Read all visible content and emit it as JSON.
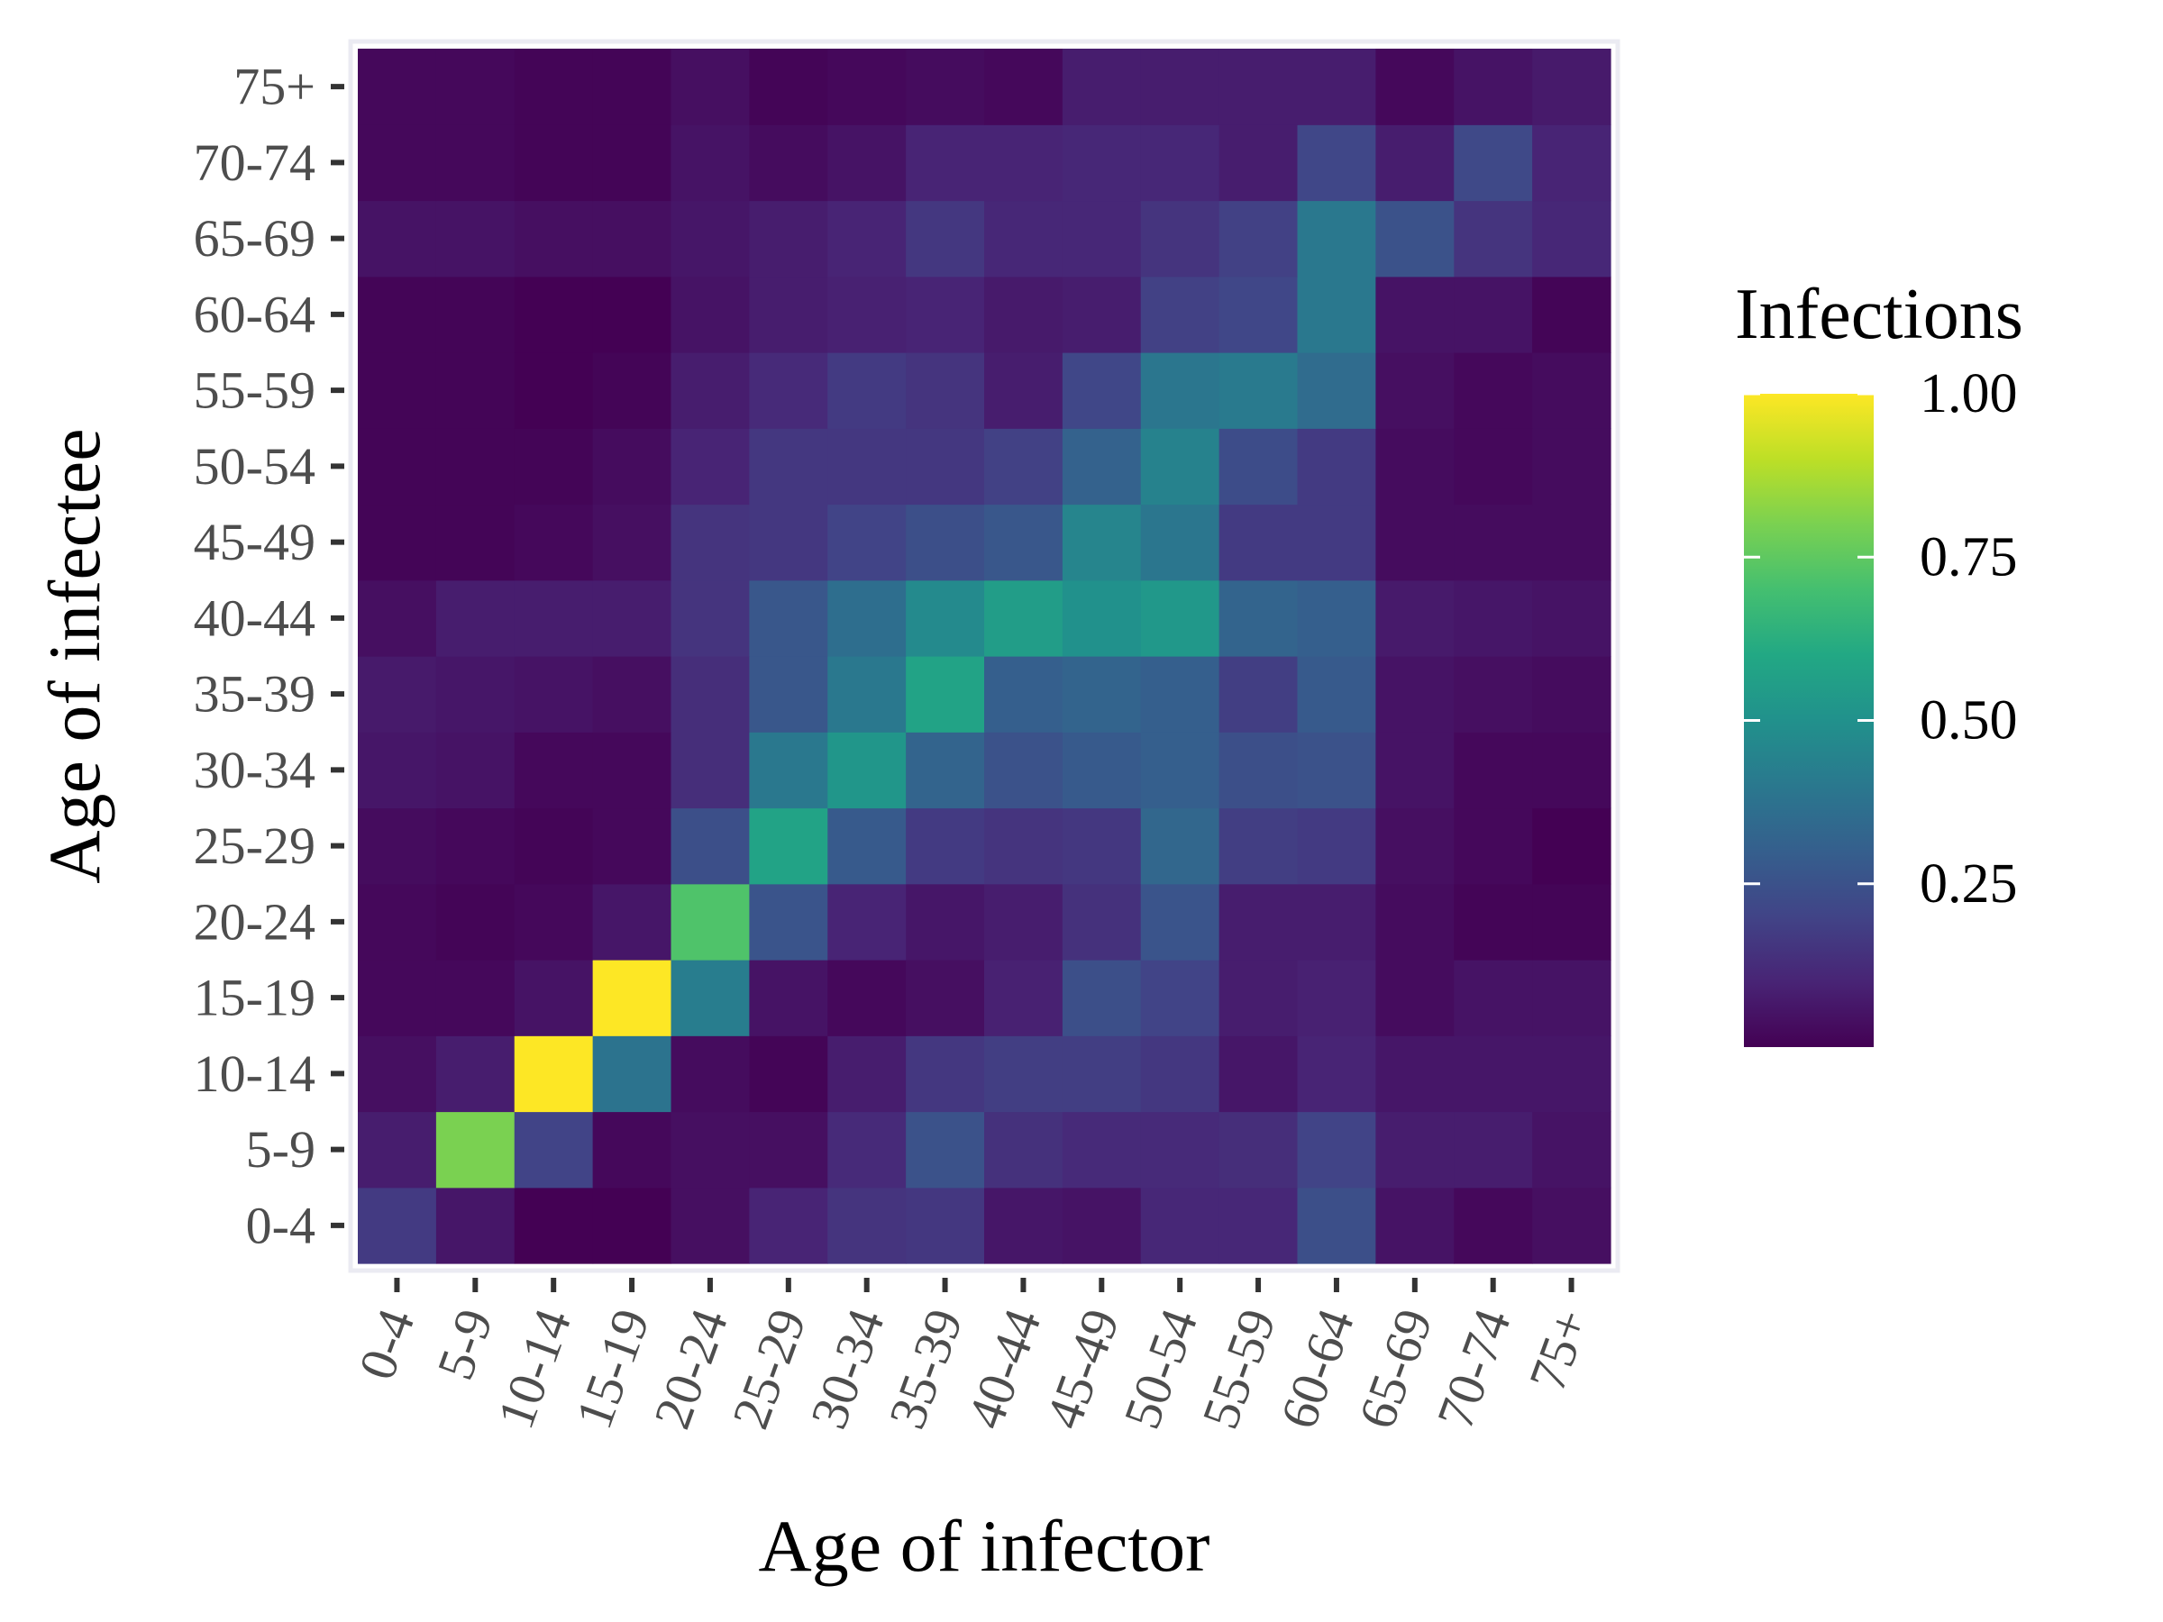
{
  "chart_data": {
    "type": "heatmap",
    "title": "",
    "xlabel": "Age of infector",
    "ylabel": "Age of infectee",
    "x_categories": [
      "0-4",
      "5-9",
      "10-14",
      "15-19",
      "20-24",
      "25-29",
      "30-34",
      "35-39",
      "40-44",
      "45-49",
      "50-54",
      "55-59",
      "60-64",
      "65-69",
      "70-74",
      "75+"
    ],
    "y_categories": [
      "0-4",
      "5-9",
      "10-14",
      "15-19",
      "20-24",
      "25-29",
      "30-34",
      "35-39",
      "40-44",
      "45-49",
      "50-54",
      "55-59",
      "60-64",
      "65-69",
      "70-74",
      "75+"
    ],
    "legend": {
      "title": "Infections",
      "position": "right",
      "colormap": "viridis",
      "range": [
        0,
        1.0
      ],
      "ticks": [
        0.25,
        0.5,
        0.75,
        1.0
      ],
      "tick_labels": [
        "0.25",
        "0.50",
        "0.75",
        "1.00"
      ]
    },
    "grid": false,
    "panel_border_color": "#ebebf2",
    "values": [
      [
        0.17,
        0.06,
        0.0,
        0.0,
        0.04,
        0.1,
        0.15,
        0.16,
        0.06,
        0.05,
        0.11,
        0.11,
        0.24,
        0.05,
        0.02,
        0.04
      ],
      [
        0.08,
        0.8,
        0.2,
        0.02,
        0.04,
        0.04,
        0.12,
        0.25,
        0.14,
        0.12,
        0.12,
        0.13,
        0.2,
        0.08,
        0.08,
        0.05
      ],
      [
        0.04,
        0.08,
        1.0,
        0.38,
        0.03,
        0.01,
        0.08,
        0.16,
        0.18,
        0.18,
        0.16,
        0.06,
        0.1,
        0.06,
        0.06,
        0.06
      ],
      [
        0.02,
        0.02,
        0.05,
        1.0,
        0.42,
        0.05,
        0.02,
        0.04,
        0.09,
        0.24,
        0.2,
        0.08,
        0.09,
        0.03,
        0.05,
        0.05
      ],
      [
        0.02,
        0.01,
        0.02,
        0.06,
        0.72,
        0.26,
        0.1,
        0.06,
        0.08,
        0.14,
        0.26,
        0.08,
        0.08,
        0.03,
        0.01,
        0.01
      ],
      [
        0.03,
        0.02,
        0.01,
        0.02,
        0.24,
        0.58,
        0.28,
        0.17,
        0.15,
        0.16,
        0.33,
        0.18,
        0.17,
        0.04,
        0.02,
        0.0
      ],
      [
        0.06,
        0.05,
        0.02,
        0.02,
        0.13,
        0.4,
        0.52,
        0.32,
        0.25,
        0.28,
        0.3,
        0.24,
        0.25,
        0.05,
        0.02,
        0.02
      ],
      [
        0.07,
        0.06,
        0.05,
        0.04,
        0.13,
        0.27,
        0.4,
        0.58,
        0.3,
        0.32,
        0.3,
        0.18,
        0.28,
        0.05,
        0.04,
        0.03
      ],
      [
        0.04,
        0.08,
        0.08,
        0.08,
        0.15,
        0.27,
        0.36,
        0.47,
        0.55,
        0.5,
        0.53,
        0.32,
        0.3,
        0.07,
        0.06,
        0.05
      ],
      [
        0.01,
        0.01,
        0.02,
        0.04,
        0.15,
        0.16,
        0.2,
        0.24,
        0.27,
        0.45,
        0.39,
        0.17,
        0.17,
        0.03,
        0.03,
        0.03
      ],
      [
        0.01,
        0.01,
        0.01,
        0.03,
        0.1,
        0.16,
        0.16,
        0.16,
        0.19,
        0.31,
        0.44,
        0.23,
        0.17,
        0.03,
        0.02,
        0.03
      ],
      [
        0.01,
        0.01,
        0.0,
        0.01,
        0.08,
        0.12,
        0.17,
        0.15,
        0.08,
        0.21,
        0.39,
        0.41,
        0.35,
        0.04,
        0.02,
        0.03
      ],
      [
        0.01,
        0.01,
        0.0,
        0.0,
        0.05,
        0.08,
        0.09,
        0.1,
        0.07,
        0.08,
        0.19,
        0.21,
        0.4,
        0.05,
        0.05,
        0.01
      ],
      [
        0.05,
        0.05,
        0.04,
        0.04,
        0.06,
        0.08,
        0.1,
        0.16,
        0.11,
        0.11,
        0.15,
        0.19,
        0.4,
        0.25,
        0.15,
        0.11
      ],
      [
        0.02,
        0.02,
        0.01,
        0.01,
        0.05,
        0.03,
        0.05,
        0.1,
        0.1,
        0.11,
        0.11,
        0.08,
        0.21,
        0.08,
        0.22,
        0.1
      ],
      [
        0.02,
        0.02,
        0.01,
        0.01,
        0.04,
        0.01,
        0.02,
        0.03,
        0.02,
        0.08,
        0.08,
        0.08,
        0.08,
        0.02,
        0.05,
        0.07
      ]
    ]
  }
}
